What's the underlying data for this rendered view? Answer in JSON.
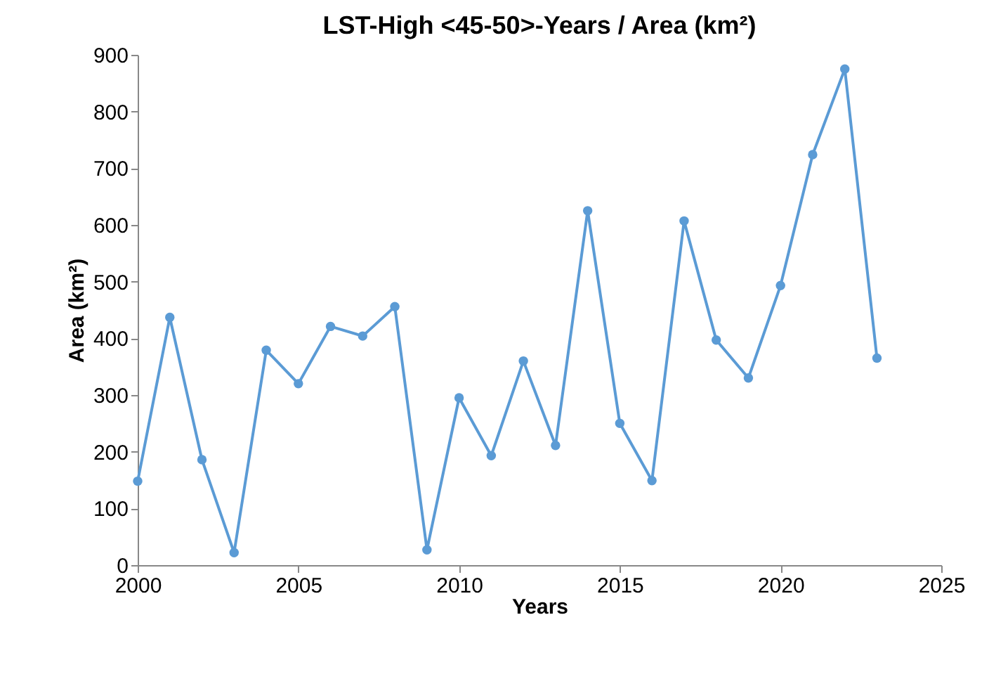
{
  "chart_data": {
    "type": "line",
    "title": "LST-High <45-50>-Years / Area (km²)",
    "xlabel": "Years",
    "ylabel": "Area (km²)",
    "x": [
      2000,
      2001,
      2002,
      2003,
      2004,
      2005,
      2006,
      2007,
      2008,
      2009,
      2010,
      2011,
      2012,
      2013,
      2014,
      2015,
      2016,
      2017,
      2018,
      2019,
      2020,
      2021,
      2022,
      2023
    ],
    "series": [
      {
        "color": "#5b9bd5",
        "values": [
          148,
          437,
          186,
          22,
          379,
          320,
          421,
          404,
          456,
          27,
          295,
          193,
          360,
          211,
          625,
          250,
          149,
          607,
          397,
          330,
          493,
          724,
          875,
          365
        ]
      }
    ],
    "xlim": [
      2000,
      2025
    ],
    "xticks": [
      2000,
      2005,
      2010,
      2015,
      2020,
      2025
    ],
    "ylim": [
      0,
      900
    ],
    "yticks": [
      0,
      100,
      200,
      300,
      400,
      500,
      600,
      700,
      800,
      900
    ],
    "marker": "circle",
    "grid": false
  }
}
